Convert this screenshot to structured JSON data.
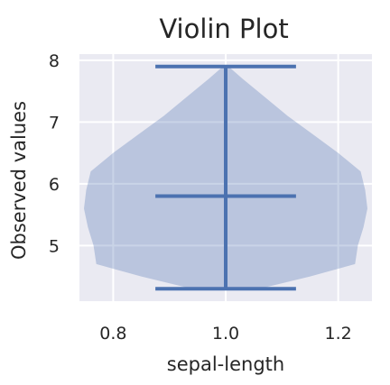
{
  "chart_data": {
    "type": "violin",
    "title": "Violin Plot",
    "xlabel": "sepal-length",
    "ylabel": "Observed values",
    "xlim": [
      0.74,
      1.26
    ],
    "ylim": [
      4.1,
      8.1
    ],
    "x_ticks": [
      0.8,
      1.0,
      1.2
    ],
    "x_tick_labels": [
      "0.8",
      "1.0",
      "1.2"
    ],
    "y_ticks": [
      5,
      6,
      7,
      8
    ],
    "y_tick_labels": [
      "5",
      "6",
      "7",
      "8"
    ],
    "grid": true,
    "colors": {
      "background": "#eaeaf2",
      "grid": "#ffffff",
      "violin_fill": "#4c72b0",
      "lines": "#4c72b0"
    },
    "violin": {
      "position": 1.0,
      "min": 4.3,
      "median": 5.8,
      "max": 7.9,
      "density_profile": [
        [
          4.3,
          0.06
        ],
        [
          4.5,
          0.15
        ],
        [
          4.7,
          0.23
        ],
        [
          5.0,
          0.235
        ],
        [
          5.3,
          0.245
        ],
        [
          5.6,
          0.252
        ],
        [
          5.9,
          0.248
        ],
        [
          6.2,
          0.24
        ],
        [
          6.5,
          0.2
        ],
        [
          6.8,
          0.155
        ],
        [
          7.1,
          0.11
        ],
        [
          7.4,
          0.07
        ],
        [
          7.7,
          0.03
        ],
        [
          7.9,
          0.005
        ]
      ]
    }
  }
}
